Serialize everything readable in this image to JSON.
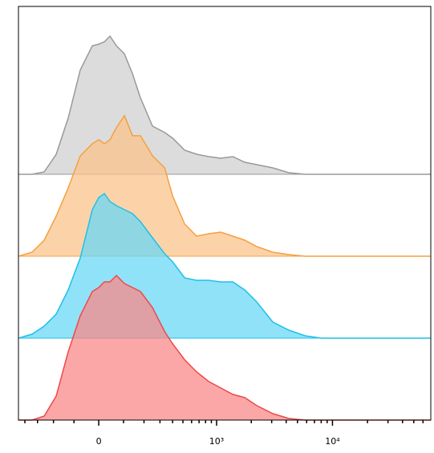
{
  "chart_data": {
    "type": "ridgeline",
    "xscale": "biexponential",
    "x": [
      -460,
      -340,
      -255,
      -185,
      -126,
      -73,
      -25,
      0,
      22,
      44,
      70,
      104,
      141,
      181,
      250,
      335,
      400,
      519,
      666,
      853,
      1088,
      1384,
      1758,
      2234,
      3071,
      4214,
      5802,
      7958,
      70000
    ],
    "xlim": [
      -460,
      70000
    ],
    "xticks": [
      {
        "value": 0,
        "label": "0"
      },
      {
        "value": 1000,
        "label": "10³"
      },
      {
        "value": 10000,
        "label": "10⁴"
      }
    ],
    "xminorticks": [
      -400,
      -300,
      -200,
      -100,
      100,
      200,
      300,
      400,
      500,
      600,
      700,
      800,
      900,
      2000,
      3000,
      4000,
      5000,
      6000,
      7000,
      8000,
      9000,
      20000,
      30000,
      40000,
      50000,
      60000
    ],
    "ylim": [
      0,
      190
    ],
    "series": [
      {
        "color": "#999999",
        "fill": "#d0d0d0",
        "values": [
          0,
          0,
          3,
          25,
          70,
          130,
          160,
          162,
          165,
          172,
          160,
          150,
          125,
          95,
          60,
          52,
          45,
          30,
          25,
          22,
          20,
          22,
          15,
          12,
          8,
          2,
          0,
          0,
          0
        ]
      },
      {
        "color": "#f5a040",
        "fill": "#fbc48c",
        "values": [
          0,
          5,
          20,
          50,
          85,
          125,
          140,
          145,
          140,
          145,
          160,
          175,
          150,
          150,
          125,
          110,
          75,
          40,
          25,
          28,
          30,
          25,
          20,
          12,
          5,
          2,
          0,
          0,
          0
        ]
      },
      {
        "color": "#1ec0e8",
        "fill": "#6ad8f5",
        "values": [
          0,
          5,
          15,
          30,
          60,
          100,
          160,
          175,
          180,
          170,
          165,
          160,
          155,
          145,
          125,
          105,
          95,
          75,
          72,
          72,
          70,
          70,
          60,
          45,
          20,
          10,
          3,
          0,
          0
        ]
      },
      {
        "color": "#f04848",
        "fill": "#fa8a8a",
        "values": [
          0,
          0,
          5,
          30,
          85,
          130,
          160,
          165,
          172,
          172,
          180,
          170,
          165,
          160,
          140,
          110,
          95,
          75,
          60,
          48,
          40,
          32,
          28,
          18,
          8,
          2,
          0,
          0,
          0
        ]
      }
    ]
  }
}
